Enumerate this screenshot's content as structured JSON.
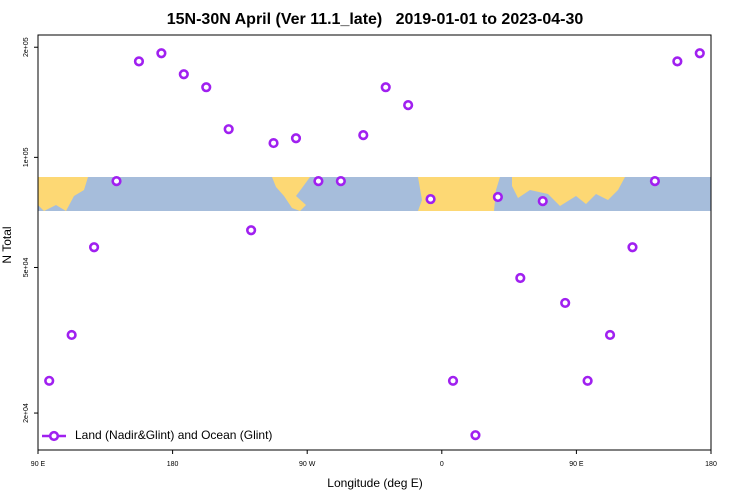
{
  "chart_data": {
    "type": "scatter",
    "title": "15N-30N April (Ver 11.1_late)   2019-01-01 to 2023-04-30",
    "xlabel": "Longitude (deg E)",
    "ylabel": "N Total",
    "x": [
      97.5,
      112.5,
      127.5,
      142.5,
      157.5,
      172.5,
      187.5,
      202.5,
      217.5,
      232.5,
      247.5,
      262.5,
      277.5,
      292.5,
      307.5,
      322.5,
      337.5,
      352.5,
      367.5,
      382.5,
      397.5,
      412.5,
      427.5,
      442.5,
      457.5,
      472.5,
      487.5,
      502.5,
      517.5,
      532.5
    ],
    "series": [
      {
        "name": "Land (Nadir&Glint) and Ocean (Glint)",
        "color": "#a020f0",
        "values": [
          24500,
          32700,
          56800,
          86100,
          183000,
          192600,
          168700,
          155500,
          119400,
          63200,
          109400,
          112800,
          86100,
          86100,
          115000,
          155500,
          138900,
          76900,
          24500,
          17400,
          77900,
          46800,
          75900,
          40000,
          24500,
          32700,
          56800,
          86100,
          183000,
          192600
        ]
      }
    ],
    "xlim": [
      90,
      540
    ],
    "xticks": [
      {
        "value": 90,
        "label": "90 E"
      },
      180,
      {
        "value": 270,
        "label": "90 W"
      },
      {
        "value": 360,
        "label": "0"
      },
      {
        "value": 450,
        "label": "90 E"
      },
      {
        "value": 540,
        "label": "180"
      }
    ],
    "ylim": [
      15850,
      216000
    ],
    "ylog": true,
    "yticks": [
      {
        "value": 20000,
        "label": "2e+04"
      },
      {
        "value": 50000,
        "label": "5e+04"
      },
      {
        "value": 100000,
        "label": "1e+05"
      },
      {
        "value": 200000,
        "label": "2e+05"
      }
    ],
    "legend": "lower left"
  }
}
